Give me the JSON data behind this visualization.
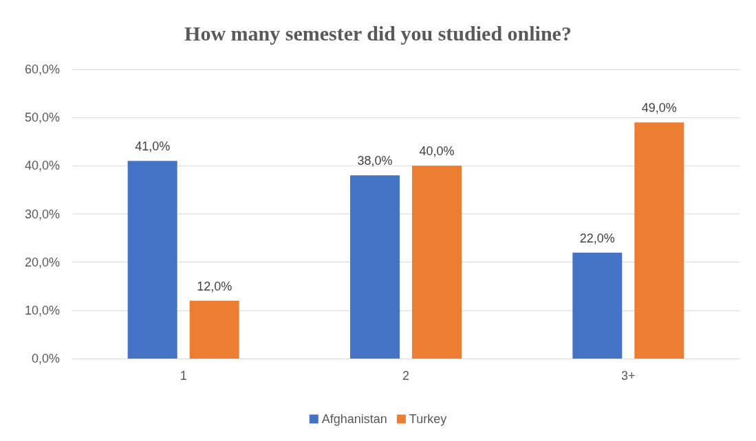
{
  "chart_data": {
    "type": "bar",
    "title": "How many semester did you studied online?",
    "categories": [
      "1",
      "2",
      "3+"
    ],
    "series": [
      {
        "name": "Afghanistan",
        "color": "#4472c4",
        "values": [
          41,
          38,
          22
        ],
        "value_labels": [
          "41,0%",
          "38,0%",
          "22,0%"
        ]
      },
      {
        "name": "Turkey",
        "color": "#ed7d31",
        "values": [
          12,
          40,
          49
        ],
        "value_labels": [
          "12,0%",
          "40,0%",
          "49,0%"
        ]
      }
    ],
    "ylim": [
      0,
      60
    ],
    "yticks": [
      {
        "value": 0,
        "label": "0,0%"
      },
      {
        "value": 10,
        "label": "10,0%"
      },
      {
        "value": 20,
        "label": "20,0%"
      },
      {
        "value": 30,
        "label": "30,0%"
      },
      {
        "value": 40,
        "label": "40,0%"
      },
      {
        "value": 50,
        "label": "50,0%"
      },
      {
        "value": 60,
        "label": "60,0%"
      }
    ],
    "grid": "y",
    "legend": "bottom"
  }
}
